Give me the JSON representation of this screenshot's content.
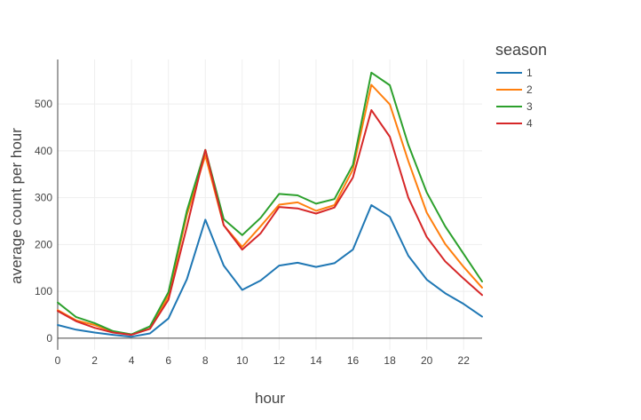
{
  "chart_data": {
    "type": "line",
    "xlabel": "hour",
    "ylabel": "average count per hour",
    "xlim": [
      0,
      23
    ],
    "ylim": [
      -25,
      595
    ],
    "x_ticks": [
      0,
      2,
      4,
      6,
      8,
      10,
      12,
      14,
      16,
      18,
      20,
      22
    ],
    "y_ticks": [
      0,
      100,
      200,
      300,
      400,
      500
    ],
    "grid": true,
    "legend": {
      "title": "season",
      "placement": "right"
    },
    "x": [
      0,
      1,
      2,
      3,
      4,
      5,
      6,
      7,
      8,
      9,
      10,
      11,
      12,
      13,
      14,
      15,
      16,
      17,
      18,
      19,
      20,
      21,
      22,
      23
    ],
    "series": [
      {
        "name": "1",
        "color": "#1f77b4",
        "values": [
          28,
          18,
          12,
          7,
          3,
          10,
          42,
          126,
          253,
          155,
          103,
          123,
          155,
          161,
          152,
          160,
          189,
          284,
          259,
          176,
          125,
          96,
          73,
          46
        ]
      },
      {
        "name": "2",
        "color": "#ff7f0e",
        "values": [
          60,
          38,
          28,
          14,
          8,
          20,
          90,
          263,
          390,
          241,
          195,
          239,
          285,
          290,
          272,
          284,
          360,
          541,
          499,
          378,
          268,
          201,
          152,
          108
        ]
      },
      {
        "name": "3",
        "color": "#2ca02c",
        "values": [
          76,
          45,
          32,
          15,
          8,
          25,
          98,
          272,
          402,
          254,
          220,
          257,
          308,
          305,
          287,
          297,
          370,
          567,
          540,
          413,
          311,
          239,
          180,
          121
        ]
      },
      {
        "name": "4",
        "color": "#d62728",
        "values": [
          58,
          36,
          22,
          12,
          7,
          20,
          82,
          238,
          402,
          241,
          189,
          224,
          280,
          277,
          266,
          279,
          343,
          487,
          430,
          300,
          216,
          164,
          127,
          92
        ]
      }
    ]
  }
}
